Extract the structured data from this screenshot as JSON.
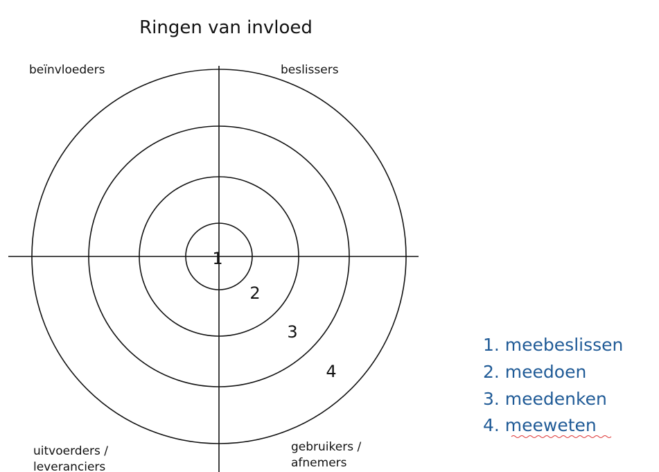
{
  "title": "Ringen van invloed",
  "quadrants": [
    {
      "lines": [
        "beïnvloeders"
      ]
    },
    {
      "lines": [
        "beslissers"
      ]
    },
    {
      "lines": [
        "uitvoerders /",
        "leveranciers"
      ]
    },
    {
      "lines": [
        "gebruikers /",
        "afnemers"
      ]
    }
  ],
  "rings": [
    "1",
    "2",
    "3",
    "4"
  ],
  "legend": [
    "1. meebeslissen",
    "2. meedoen",
    "3. meedenken",
    "4. meeweten"
  ]
}
